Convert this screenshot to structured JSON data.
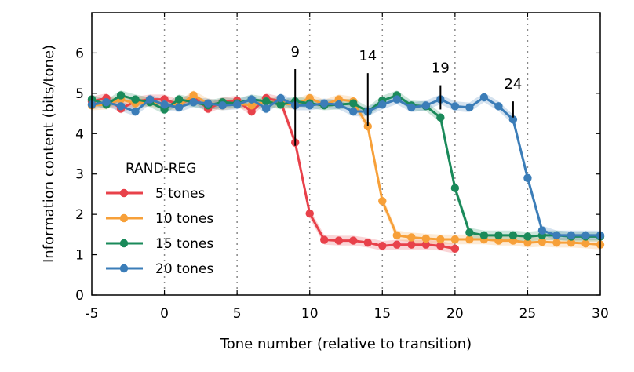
{
  "chart_data": {
    "type": "line",
    "title": "",
    "xlabel": "Tone number (relative to transition)",
    "ylabel": "Information content (bits/tone)",
    "xlim": [
      -5,
      30
    ],
    "ylim": [
      0,
      7
    ],
    "xticks": [
      -5,
      0,
      5,
      10,
      15,
      20,
      25,
      30
    ],
    "yticks": [
      0,
      1,
      2,
      3,
      4,
      5,
      6
    ],
    "vertical_gridlines_at": [
      0,
      5,
      10,
      15,
      20,
      25
    ],
    "grid": "dotted vertical",
    "legend": {
      "title": "RAND-REG",
      "placement": "lower-left"
    },
    "annotations": [
      {
        "text": "9",
        "x": 9,
        "y_from": 3.7,
        "y_to": 5.6
      },
      {
        "text": "14",
        "x": 14,
        "y_from": 4.2,
        "y_to": 5.5
      },
      {
        "text": "19",
        "x": 19,
        "y_from": 4.6,
        "y_to": 5.2
      },
      {
        "text": "24",
        "x": 24,
        "y_from": 4.4,
        "y_to": 4.8
      }
    ],
    "series": [
      {
        "name": "5 tones",
        "color": "#e8414a",
        "x": [
          -5,
          -4,
          -3,
          -2,
          -1,
          0,
          1,
          2,
          3,
          4,
          5,
          6,
          7,
          8,
          9,
          10,
          11,
          12,
          13,
          14,
          15,
          16,
          17,
          18,
          19,
          20
        ],
        "y": [
          4.8,
          4.88,
          4.62,
          4.8,
          4.85,
          4.85,
          4.72,
          4.9,
          4.62,
          4.78,
          4.82,
          4.55,
          4.88,
          4.8,
          3.78,
          2.02,
          1.37,
          1.35,
          1.35,
          1.3,
          1.22,
          1.25,
          1.25,
          1.25,
          1.22,
          1.15
        ]
      },
      {
        "name": "10 tones",
        "color": "#f7a039",
        "x": [
          -5,
          -4,
          -3,
          -2,
          -1,
          0,
          1,
          2,
          3,
          4,
          5,
          6,
          7,
          8,
          9,
          10,
          11,
          12,
          13,
          14,
          15,
          16,
          17,
          18,
          19,
          20,
          21,
          22,
          23,
          24,
          25,
          26,
          27,
          28,
          29,
          30
        ],
        "y": [
          4.7,
          4.72,
          4.85,
          4.75,
          4.8,
          4.72,
          4.7,
          4.95,
          4.75,
          4.7,
          4.75,
          4.7,
          4.8,
          4.75,
          4.72,
          4.88,
          4.72,
          4.85,
          4.8,
          4.18,
          2.33,
          1.48,
          1.43,
          1.4,
          1.38,
          1.38,
          1.38,
          1.38,
          1.35,
          1.35,
          1.3,
          1.32,
          1.3,
          1.3,
          1.28,
          1.25
        ]
      },
      {
        "name": "15 tones",
        "color": "#1a8a5a",
        "x": [
          -5,
          -4,
          -3,
          -2,
          -1,
          0,
          1,
          2,
          3,
          4,
          5,
          6,
          7,
          8,
          9,
          10,
          11,
          12,
          13,
          14,
          15,
          16,
          17,
          18,
          19,
          20,
          21,
          22,
          23,
          24,
          25,
          26,
          27,
          28,
          29,
          30
        ],
        "y": [
          4.85,
          4.72,
          4.95,
          4.85,
          4.78,
          4.6,
          4.85,
          4.78,
          4.7,
          4.78,
          4.75,
          4.85,
          4.8,
          4.72,
          4.8,
          4.75,
          4.7,
          4.72,
          4.75,
          4.55,
          4.82,
          4.95,
          4.7,
          4.68,
          4.4,
          2.65,
          1.55,
          1.48,
          1.48,
          1.48,
          1.45,
          1.48,
          1.48,
          1.45,
          1.45,
          1.45
        ]
      },
      {
        "name": "20 tones",
        "color": "#3b7db8",
        "x": [
          -5,
          -4,
          -3,
          -2,
          -1,
          0,
          1,
          2,
          3,
          4,
          5,
          6,
          7,
          8,
          9,
          10,
          11,
          12,
          13,
          14,
          15,
          16,
          17,
          18,
          19,
          20,
          21,
          22,
          23,
          24,
          25,
          26,
          27,
          28,
          29,
          30
        ],
        "y": [
          4.72,
          4.78,
          4.68,
          4.55,
          4.85,
          4.72,
          4.65,
          4.78,
          4.75,
          4.7,
          4.72,
          4.85,
          4.62,
          4.88,
          4.7,
          4.7,
          4.75,
          4.72,
          4.55,
          4.55,
          4.72,
          4.85,
          4.65,
          4.7,
          4.85,
          4.68,
          4.65,
          4.9,
          4.68,
          4.35,
          2.9,
          1.6,
          1.48,
          1.48,
          1.48,
          1.48
        ]
      }
    ]
  }
}
